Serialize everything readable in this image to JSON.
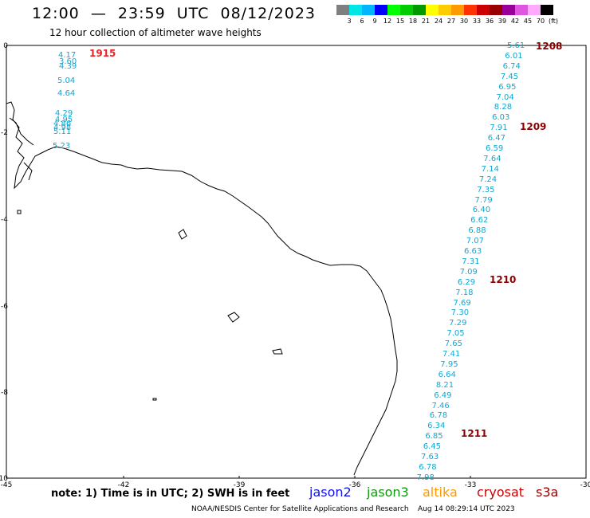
{
  "header": {
    "title": "12:00  —  23:59  UTC  08/12/2023",
    "subtitle": "12 hour collection of altimeter wave heights"
  },
  "scale": {
    "colors": [
      "#7f7f7f",
      "#00e5e5",
      "#00b7ff",
      "#0000ff",
      "#00ff00",
      "#00cc00",
      "#009900",
      "#ffff00",
      "#ffcc00",
      "#ff9900",
      "#ff3300",
      "#cc0000",
      "#990000",
      "#990099",
      "#e055e0",
      "#ffaaff",
      "#000000"
    ],
    "labels": [
      "3",
      "6",
      "9",
      "12",
      "15",
      "18",
      "21",
      "24",
      "27",
      "30",
      "33",
      "36",
      "39",
      "42",
      "45",
      "70",
      "(ft)"
    ]
  },
  "axes": {
    "x_ticks": [
      "-45",
      "-42",
      "-39",
      "-36",
      "-33",
      "-30"
    ],
    "y_ticks": [
      "0",
      "-2",
      "-4",
      "-6",
      "-8",
      "-10"
    ]
  },
  "map": {
    "coast_color": "#000000",
    "track_color": "#11a7d2"
  },
  "passes": {
    "left_values": [
      "4.17",
      "3.60",
      "4.39",
      "5.04",
      "4.64",
      "4.29",
      "4.95",
      "4.86",
      "4.98",
      "5.11",
      "5.23"
    ],
    "right_values": [
      "5.61",
      "6.01",
      "6.74",
      "7.45",
      "6.95",
      "7.04",
      "8.28",
      "6.03",
      "7.91",
      "6.47",
      "6.59",
      "7.64",
      "7.14",
      "7.24",
      "7.35",
      "7.79",
      "6.40",
      "6.62",
      "6.88",
      "7.07",
      "6.63",
      "7.31",
      "7.09",
      "6.29",
      "7.18",
      "7.69",
      "7.30",
      "7.29",
      "7.05",
      "7.65",
      "7.41",
      "7.95",
      "6.64",
      "8.21",
      "6.49",
      "7.46",
      "6.78",
      "6.34",
      "6.85",
      "6.45",
      "7.63",
      "6.78",
      "7.98"
    ],
    "time_tags": [
      {
        "label": "1915",
        "color": "#ee2222"
      },
      {
        "label": "1208",
        "color": "#8b0000"
      },
      {
        "label": "1209",
        "color": "#8b0000"
      },
      {
        "label": "1210",
        "color": "#8b0000"
      },
      {
        "label": "1211",
        "color": "#8b0000"
      }
    ]
  },
  "footer": {
    "note": "note:  1) Time is in UTC;  2) SWH is in feet",
    "satellites": [
      {
        "label": "jason2",
        "color": "#1111ee"
      },
      {
        "label": "jason3",
        "color": "#119911"
      },
      {
        "label": "altika",
        "color": "#ff9900"
      },
      {
        "label": "cryosat",
        "color": "#cc0000"
      },
      {
        "label": "s3a",
        "color": "#990000"
      }
    ],
    "credit": "NOAA/NESDIS Center for Satellite Applications and Research    Aug 14 08:29:14 UTC 2023"
  }
}
